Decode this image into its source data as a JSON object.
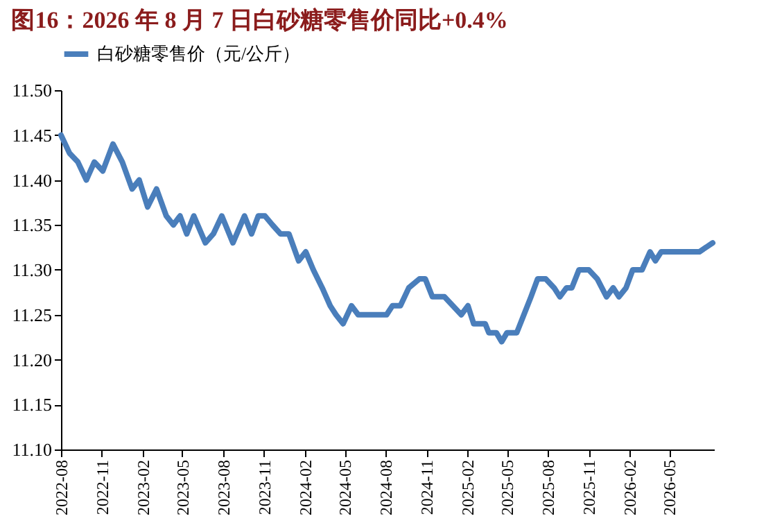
{
  "chart_data": {
    "type": "line",
    "title": "图16：2026 年 8 月 7 日白砂糖零售价同比+0.4%",
    "x": [
      "2022-08-01",
      "2022-08-20",
      "2022-09-08",
      "2022-09-27",
      "2022-10-15",
      "2022-11-03",
      "2022-11-26",
      "2022-12-17",
      "2023-01-08",
      "2023-01-24",
      "2023-02-12",
      "2023-03-04",
      "2023-03-26",
      "2023-04-11",
      "2023-04-26",
      "2023-05-11",
      "2023-05-27",
      "2023-06-22",
      "2023-07-10",
      "2023-07-29",
      "2023-08-23",
      "2023-09-18",
      "2023-10-04",
      "2023-10-19",
      "2023-11-03",
      "2023-11-20",
      "2023-12-08",
      "2023-12-27",
      "2024-01-18",
      "2024-02-03",
      "2024-02-20",
      "2024-03-11",
      "2024-03-29",
      "2024-04-11",
      "2024-04-27",
      "2024-05-16",
      "2024-05-31",
      "2024-08-03",
      "2024-08-16",
      "2024-09-03",
      "2024-09-22",
      "2024-10-16",
      "2024-10-29",
      "2024-11-14",
      "2024-12-11",
      "2024-12-30",
      "2025-01-18",
      "2025-02-02",
      "2025-02-15",
      "2025-03-13",
      "2025-03-21",
      "2025-04-07",
      "2025-04-19",
      "2025-05-01",
      "2025-05-23",
      "2025-06-08",
      "2025-06-24",
      "2025-07-09",
      "2025-07-27",
      "2025-08-15",
      "2025-08-28",
      "2025-09-12",
      "2025-09-24",
      "2025-10-10",
      "2025-11-01",
      "2025-11-20",
      "2025-12-11",
      "2025-12-26",
      "2026-01-08",
      "2026-01-24",
      "2026-02-08",
      "2026-03-01",
      "2026-03-19",
      "2026-03-31",
      "2026-04-13",
      "2026-07-08",
      "2026-08-07"
    ],
    "series": [
      {
        "name": "白砂糖零售价（元/公斤）",
        "color": "#4a7ebb",
        "values": [
          11.45,
          11.43,
          11.42,
          11.4,
          11.42,
          11.41,
          11.44,
          11.42,
          11.39,
          11.4,
          11.37,
          11.39,
          11.36,
          11.35,
          11.36,
          11.34,
          11.36,
          11.33,
          11.34,
          11.36,
          11.33,
          11.36,
          11.34,
          11.36,
          11.36,
          11.35,
          11.34,
          11.34,
          11.31,
          11.32,
          11.3,
          11.28,
          11.26,
          11.25,
          11.24,
          11.26,
          11.25,
          11.25,
          11.26,
          11.26,
          11.28,
          11.29,
          11.29,
          11.27,
          11.27,
          11.26,
          11.25,
          11.26,
          11.24,
          11.24,
          11.23,
          11.23,
          11.22,
          11.23,
          11.23,
          11.25,
          11.27,
          11.29,
          11.29,
          11.28,
          11.27,
          11.28,
          11.28,
          11.3,
          11.3,
          11.29,
          11.27,
          11.28,
          11.27,
          11.28,
          11.3,
          11.3,
          11.32,
          11.31,
          11.32,
          11.32,
          11.33
        ]
      }
    ],
    "xlim": [
      "2022-08-01",
      "2026-08-10"
    ],
    "xticks": [
      "2022-08",
      "2022-11",
      "2023-02",
      "2023-05",
      "2023-08",
      "2023-11",
      "2024-02",
      "2024-05",
      "2024-08",
      "2024-11",
      "2025-02",
      "2025-05",
      "2025-08",
      "2025-11",
      "2026-02",
      "2026-05"
    ],
    "ylim": [
      11.1,
      11.5
    ],
    "yticks": [
      {
        "value": 11.1,
        "label": "11.10"
      },
      {
        "value": 11.15,
        "label": "11.15"
      },
      {
        "value": 11.2,
        "label": "11.20"
      },
      {
        "value": 11.25,
        "label": "11.25"
      },
      {
        "value": 11.3,
        "label": "11.30"
      },
      {
        "value": 11.35,
        "label": "11.35"
      },
      {
        "value": 11.4,
        "label": "11.40"
      },
      {
        "value": 11.45,
        "label": "11.45"
      },
      {
        "value": 11.5,
        "label": "11.50"
      }
    ],
    "grid": false,
    "legend": "top",
    "marker": "none",
    "line_style": "solid"
  }
}
